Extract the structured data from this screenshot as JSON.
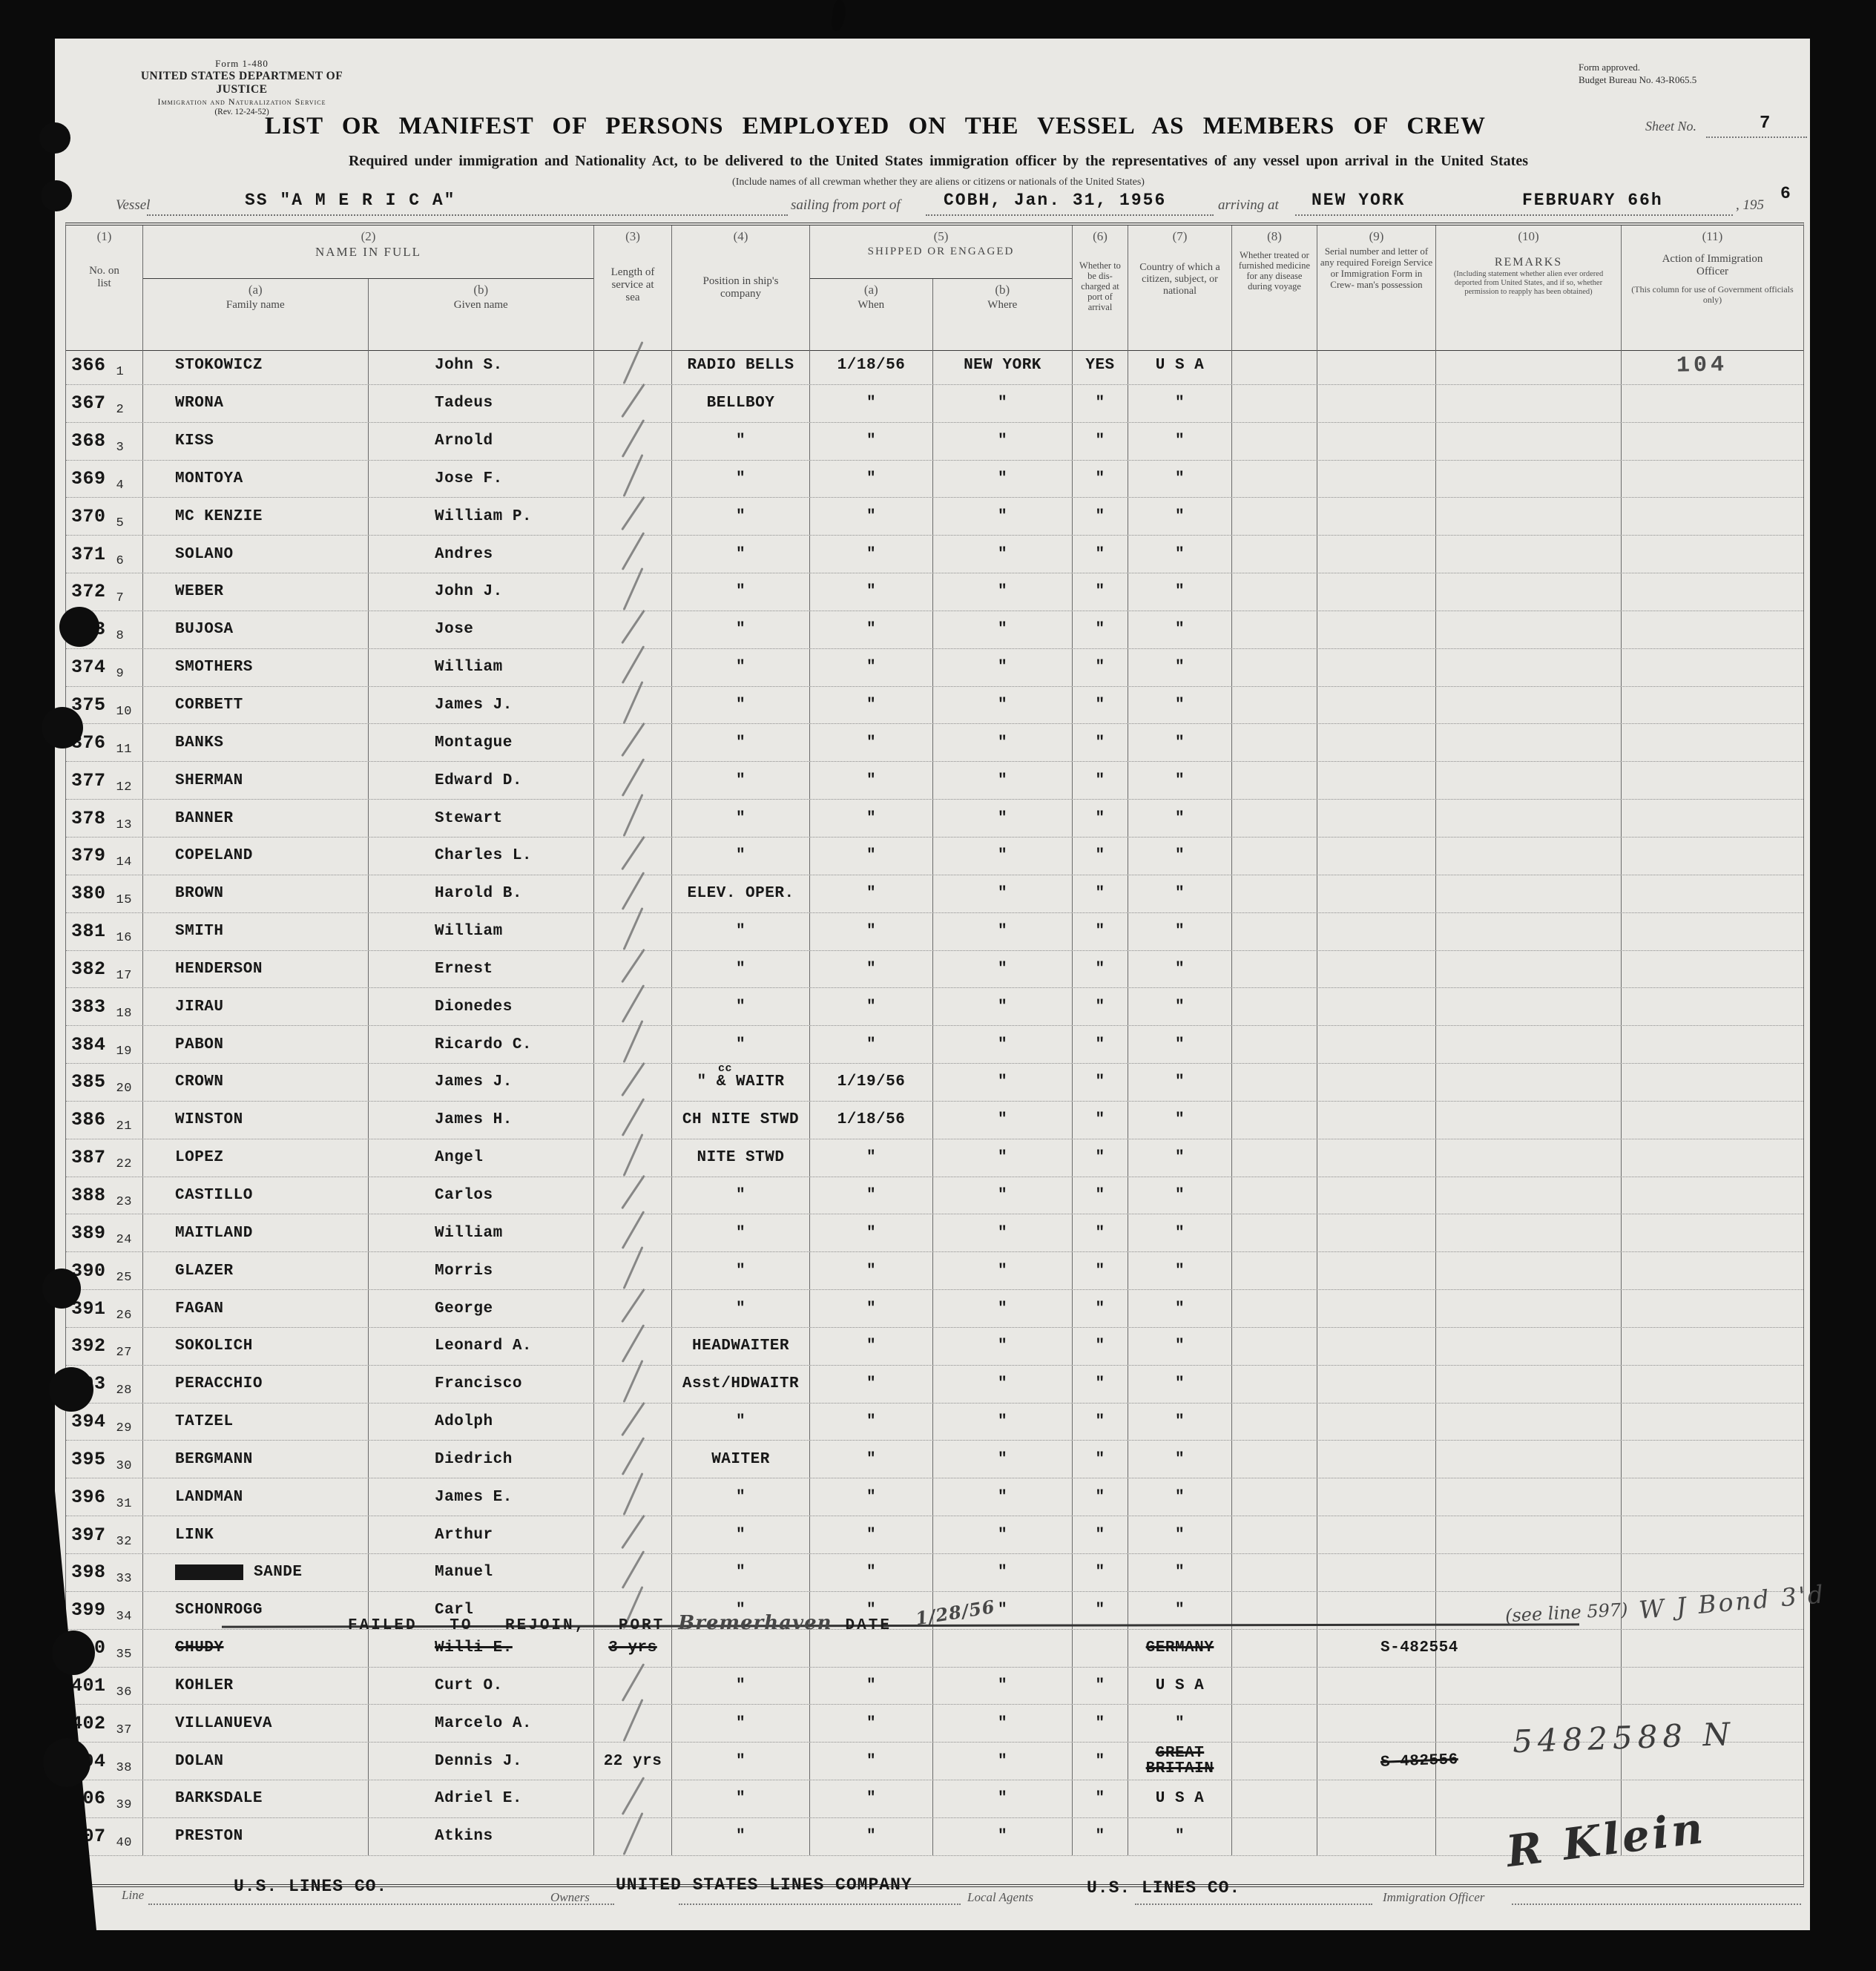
{
  "form": {
    "number": "Form 1-480",
    "agency": "UNITED STATES DEPARTMENT OF JUSTICE",
    "service": "Immigration and Naturalization Service",
    "revision": "(Rev. 12-24-52)",
    "approved1": "Form approved.",
    "approved2": "Budget Bureau No. 43-R065.5",
    "sheet_label": "Sheet No.",
    "sheet_number": "7"
  },
  "title": "LIST OR MANIFEST OF PERSONS EMPLOYED ON THE VESSEL AS MEMBERS OF CREW",
  "subtitle": "Required under immigration and Nationality Act, to be delivered to the United States immigration officer by the representatives of any vessel upon arrival in the United States",
  "subtitle_note": "(Include names of all crewman whether they are aliens or citizens or nationals of the United States)",
  "voyage": {
    "vessel_label": "Vessel",
    "vessel_name": "SS \"A M E R I C A\"",
    "sailing_label": "sailing from port of",
    "sailing_value": "COBH, Jan. 31, 1956",
    "arriving_label": "arriving at",
    "arriving_value": "NEW YORK",
    "arrival_month": "FEBRUARY 66h",
    "year_printed": ", 195",
    "year_typed": "6"
  },
  "table_header": {
    "c1_num": "(1)",
    "c1_label": "No. on list",
    "c2_num": "(2)",
    "c2_label": "NAME IN FULL",
    "c2a_num": "(a)",
    "c2a_label": "Family name",
    "c2b_num": "(b)",
    "c2b_label": "Given name",
    "c3_num": "(3)",
    "c3_label": "Length of service at sea",
    "c4_num": "(4)",
    "c4_label": "Position in ship's company",
    "c5_num": "(5)",
    "c5_label": "SHIPPED OR ENGAGED",
    "c5a_num": "(a)",
    "c5a_label": "When",
    "c5b_num": "(b)",
    "c5b_label": "Where",
    "c6_num": "(6)",
    "c6_label": "Whether to be dis- charged at port of arrival",
    "c7_num": "(7)",
    "c7_label": "Country of which a citizen, subject, or national",
    "c8_num": "(8)",
    "c8_label": "Whether treated or furnished medicine for any disease during voyage",
    "c9_num": "(9)",
    "c9_label": "Serial number and letter of any required Foreign Service or Immigration Form in Crew- man's possession",
    "c10_num": "(10)",
    "c10_label": "REMARKS",
    "c10_note": "(Including statement whether alien ever ordered deported from United States, and if so, whether permission to reapply has been obtained)",
    "c11_num": "(11)",
    "c11_label": "Action of Immigration Officer",
    "c11_note": "(This column for use of Government officials only)"
  },
  "rows": [
    {
      "no": "366",
      "line": "1",
      "family": "STOKOWICZ",
      "given": "John S.",
      "pos": "RADIO BELLS",
      "when": "1/18/56",
      "where": "NEW YORK",
      "disch": "YES",
      "country": "U S A",
      "action": "104",
      "slash": true
    },
    {
      "no": "367",
      "line": "2",
      "family": "WRONA",
      "given": "Tadeus",
      "pos": "BELLBOY",
      "when": "\"",
      "where": "\"",
      "disch": "\"",
      "country": "\"",
      "slash": true
    },
    {
      "no": "368",
      "line": "3",
      "family": "KISS",
      "given": "Arnold",
      "pos": "\"",
      "when": "\"",
      "where": "\"",
      "disch": "\"",
      "country": "\"",
      "slash": true
    },
    {
      "no": "369",
      "line": "4",
      "family": "MONTOYA",
      "given": "Jose F.",
      "pos": "\"",
      "when": "\"",
      "where": "\"",
      "disch": "\"",
      "country": "\"",
      "slash": true
    },
    {
      "no": "370",
      "line": "5",
      "family": "MC KENZIE",
      "given": "William P.",
      "pos": "\"",
      "when": "\"",
      "where": "\"",
      "disch": "\"",
      "country": "\"",
      "slash": true
    },
    {
      "no": "371",
      "line": "6",
      "family": "SOLANO",
      "given": "Andres",
      "pos": "\"",
      "when": "\"",
      "where": "\"",
      "disch": "\"",
      "country": "\"",
      "slash": true
    },
    {
      "no": "372",
      "line": "7",
      "family": "WEBER",
      "given": "John J.",
      "pos": "\"",
      "when": "\"",
      "where": "\"",
      "disch": "\"",
      "country": "\"",
      "slash": true
    },
    {
      "no": "373",
      "line": "8",
      "family": "BUJOSA",
      "given": "Jose",
      "pos": "\"",
      "when": "\"",
      "where": "\"",
      "disch": "\"",
      "country": "\"",
      "slash": true
    },
    {
      "no": "374",
      "line": "9",
      "family": "SMOTHERS",
      "given": "William",
      "pos": "\"",
      "when": "\"",
      "where": "\"",
      "disch": "\"",
      "country": "\"",
      "slash": true
    },
    {
      "no": "375",
      "line": "10",
      "family": "CORBETT",
      "given": "James J.",
      "pos": "\"",
      "when": "\"",
      "where": "\"",
      "disch": "\"",
      "country": "\"",
      "slash": true
    },
    {
      "no": "376",
      "line": "11",
      "family": "BANKS",
      "given": "Montague",
      "pos": "\"",
      "when": "\"",
      "where": "\"",
      "disch": "\"",
      "country": "\"",
      "slash": true
    },
    {
      "no": "377",
      "line": "12",
      "family": "SHERMAN",
      "given": "Edward D.",
      "pos": "\"",
      "when": "\"",
      "where": "\"",
      "disch": "\"",
      "country": "\"",
      "slash": true
    },
    {
      "no": "378",
      "line": "13",
      "family": "BANNER",
      "given": "Stewart",
      "pos": "\"",
      "when": "\"",
      "where": "\"",
      "disch": "\"",
      "country": "\"",
      "slash": true
    },
    {
      "no": "379",
      "line": "14",
      "family": "COPELAND",
      "given": "Charles L.",
      "pos": "\"",
      "when": "\"",
      "where": "\"",
      "disch": "\"",
      "country": "\"",
      "slash": true
    },
    {
      "no": "380",
      "line": "15",
      "family": "BROWN",
      "given": "Harold B.",
      "pos": "ELEV. OPER.",
      "when": "\"",
      "where": "\"",
      "disch": "\"",
      "country": "\"",
      "slash": true
    },
    {
      "no": "381",
      "line": "16",
      "family": "SMITH",
      "given": "William",
      "pos": "\"",
      "when": "\"",
      "where": "\"",
      "disch": "\"",
      "country": "\"",
      "slash": true
    },
    {
      "no": "382",
      "line": "17",
      "family": "HENDERSON",
      "given": "Ernest",
      "pos": "\"",
      "when": "\"",
      "where": "\"",
      "disch": "\"",
      "country": "\"",
      "slash": true
    },
    {
      "no": "383",
      "line": "18",
      "family": "JIRAU",
      "given": "Dionedes",
      "pos": "\"",
      "when": "\"",
      "where": "\"",
      "disch": "\"",
      "country": "\"",
      "slash": true
    },
    {
      "no": "384",
      "line": "19",
      "family": "PABON",
      "given": "Ricardo C.",
      "pos": "\"",
      "when": "\"",
      "where": "\"",
      "disch": "\"",
      "country": "\"",
      "slash": true
    },
    {
      "no": "385",
      "line": "20",
      "family": "CROWN",
      "given": "James J.",
      "pos": "\" & WAITR",
      "pos_note": "cc",
      "when": "1/19/56",
      "where": "\"",
      "disch": "\"",
      "country": "\"",
      "slash": true
    },
    {
      "no": "386",
      "line": "21",
      "family": "WINSTON",
      "given": "James H.",
      "pos": "CH NITE STWD",
      "when": "1/18/56",
      "where": "\"",
      "disch": "\"",
      "country": "\"",
      "slash": true
    },
    {
      "no": "387",
      "line": "22",
      "family": "LOPEZ",
      "given": "Angel",
      "pos": "NITE STWD",
      "when": "\"",
      "where": "\"",
      "disch": "\"",
      "country": "\"",
      "slash": true
    },
    {
      "no": "388",
      "line": "23",
      "family": "CASTILLO",
      "given": "Carlos",
      "pos": "\"",
      "when": "\"",
      "where": "\"",
      "disch": "\"",
      "country": "\"",
      "slash": true
    },
    {
      "no": "389",
      "line": "24",
      "family": "MAITLAND",
      "given": "William",
      "pos": "\"",
      "when": "\"",
      "where": "\"",
      "disch": "\"",
      "country": "\"",
      "slash": true
    },
    {
      "no": "390",
      "line": "25",
      "family": "GLAZER",
      "given": "Morris",
      "pos": "\"",
      "when": "\"",
      "where": "\"",
      "disch": "\"",
      "country": "\"",
      "slash": true
    },
    {
      "no": "391",
      "line": "26",
      "family": "FAGAN",
      "given": "George",
      "pos": "\"",
      "when": "\"",
      "where": "\"",
      "disch": "\"",
      "country": "\"",
      "slash": true
    },
    {
      "no": "392",
      "line": "27",
      "family": "SOKOLICH",
      "given": "Leonard A.",
      "pos": "HEADWAITER",
      "when": "\"",
      "where": "\"",
      "disch": "\"",
      "country": "\"",
      "slash": true
    },
    {
      "no": "393",
      "line": "28",
      "family": "PERACCHIO",
      "given": "Francisco",
      "pos": "Asst/HDWAITR",
      "when": "\"",
      "where": "\"",
      "disch": "\"",
      "country": "\"",
      "slash": true
    },
    {
      "no": "394",
      "line": "29",
      "family": "TATZEL",
      "given": "Adolph",
      "pos": "\"",
      "when": "\"",
      "where": "\"",
      "disch": "\"",
      "country": "\"",
      "slash": true
    },
    {
      "no": "395",
      "line": "30",
      "family": "BERGMANN",
      "given": "Diedrich",
      "pos": "WAITER",
      "when": "\"",
      "where": "\"",
      "disch": "\"",
      "country": "\"",
      "slash": true
    },
    {
      "no": "396",
      "line": "31",
      "family": "LANDMAN",
      "given": "James E.",
      "pos": "\"",
      "when": "\"",
      "where": "\"",
      "disch": "\"",
      "country": "\"",
      "slash": true
    },
    {
      "no": "397",
      "line": "32",
      "family": "LINK",
      "given": "Arthur",
      "pos": "\"",
      "when": "\"",
      "where": "\"",
      "disch": "\"",
      "country": "\"",
      "slash": true
    },
    {
      "no": "398",
      "line": "33",
      "family": "SANDE",
      "given": "Manuel",
      "pos": "\"",
      "when": "\"",
      "where": "\"",
      "disch": "\"",
      "country": "\"",
      "slash": true,
      "redact": true
    },
    {
      "no": "399",
      "line": "34",
      "family": "SCHONROGG",
      "given": "Carl",
      "pos": "\"",
      "when": "\"",
      "where": "\"",
      "disch": "\"",
      "country": "\"",
      "slash": true
    },
    {
      "no": "400",
      "line": "35",
      "family": "CHUDY",
      "given": "Willi E.",
      "length": "3 yrs",
      "pos": "",
      "when": "",
      "where": "",
      "disch": "",
      "country": "GERMANY",
      "serial": "S-482554",
      "strike": true,
      "country_strike": true
    },
    {
      "no": "401",
      "line": "36",
      "family": "KOHLER",
      "given": "Curt O.",
      "pos": "\"",
      "when": "\"",
      "where": "\"",
      "disch": "\"",
      "country": "U S A",
      "slash": true
    },
    {
      "no": "402",
      "line": "37",
      "family": "VILLANUEVA",
      "given": "Marcelo A.",
      "pos": "\"",
      "when": "\"",
      "where": "\"",
      "disch": "\"",
      "country": "\"",
      "slash": true
    },
    {
      "no": "404",
      "line": "38",
      "family": "DOLAN",
      "given": "Dennis J.",
      "length": "22 yrs",
      "pos": "\"",
      "when": "\"",
      "where": "\"",
      "disch": "\"",
      "country": "GREAT\nBRITAIN",
      "serial": "S-482556",
      "country_strike": true,
      "serial_strike": true
    },
    {
      "no": "406",
      "line": "39",
      "family": "BARKSDALE",
      "given": "Adriel E.",
      "pos": "\"",
      "when": "\"",
      "where": "\"",
      "disch": "\"",
      "country": "U S A",
      "slash": true
    },
    {
      "no": "407",
      "line": "40",
      "family": "PRESTON",
      "given": "Atkins",
      "pos": "\"",
      "when": "\"",
      "where": "\"",
      "disch": "\"",
      "country": "\"",
      "slash": true
    }
  ],
  "row35_overlay": {
    "text1": "FAILED TO REJOIN, PORT",
    "port": "Bremerhaven",
    "text2": "DATE",
    "date": "1/28/56"
  },
  "handwriting": {
    "see_line": "(see line 597)",
    "bond": "W J Bond 3'd",
    "serial_fix": "5482588  N"
  },
  "footer": {
    "line_label": "Line",
    "line_value": "U.S. LINES CO.",
    "owners_label": "Owners",
    "owners_value": "UNITED STATES LINES COMPANY",
    "agents_label": "Local Agents",
    "agents_value": "U.S. LINES CO.",
    "officer_label": "Immigration Officer",
    "signature": "R Klein"
  }
}
